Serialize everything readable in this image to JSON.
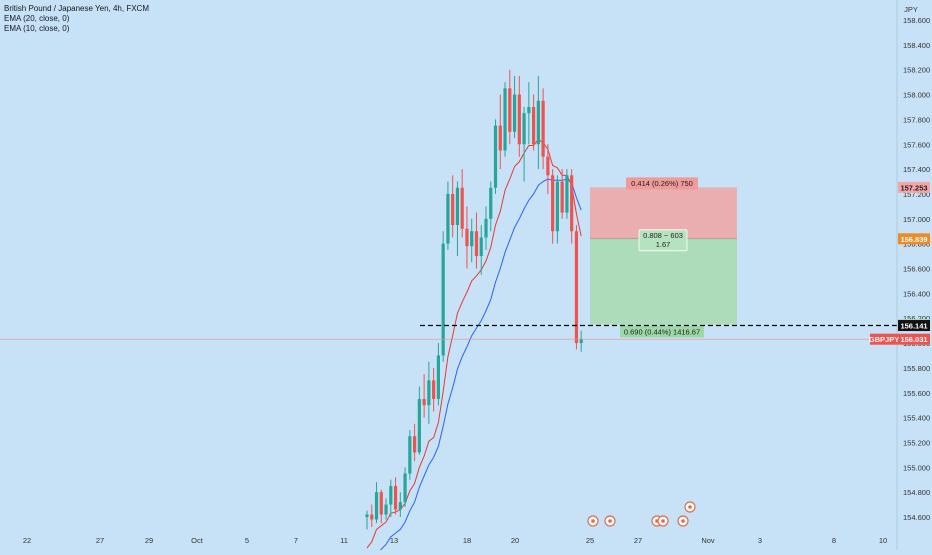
{
  "legend": {
    "title": "British Pound / Japanese Yen, 4h, FXCM",
    "ema20": "EMA (20, close, 0)",
    "ema10": "EMA (10, close, 0)"
  },
  "axis": {
    "currency": "JPY",
    "price_ticks": [
      "154.600",
      "154.800",
      "155.000",
      "155.200",
      "155.400",
      "155.600",
      "155.800",
      "156.000",
      "156.200",
      "156.400",
      "156.600",
      "156.800",
      "157.000",
      "157.200",
      "157.400",
      "157.600",
      "157.800",
      "158.000",
      "158.200",
      "158.400",
      "158.600"
    ],
    "date_ticks": [
      "22",
      "27",
      "29",
      "Oct",
      "5",
      "7",
      "11",
      "13",
      "18",
      "20",
      "25",
      "27",
      "Nov",
      "3",
      "8",
      "10"
    ]
  },
  "price_labels": {
    "stop": "157.253",
    "entry": "156.839",
    "target": "156.149",
    "dashed_level": "156.141",
    "symbol": "GBPJPY",
    "current": "156.031"
  },
  "position_tool": {
    "risk_text": "0.414 (0.26%) 750",
    "ratio_text": "0.808 ~ 603",
    "ratio_value": "1.67",
    "reward_text": "0.690 (0.44%) 1416.67"
  },
  "colors": {
    "bull": "#26a69a",
    "bear": "#ef5350",
    "ema20": "#2962ff",
    "ema10": "#e53935",
    "risk_zone": "#f0a3a3",
    "reward_zone": "#a8dcb2",
    "background": "#c7e2f6"
  },
  "chart_data": {
    "type": "candlestick",
    "symbol": "GBPJPY",
    "timeframe": "4h",
    "y_range": [
      154.5,
      158.7
    ],
    "y_scale": "linear",
    "candles": [
      {
        "o": 154.6,
        "h": 154.65,
        "l": 154.5,
        "c": 154.62
      },
      {
        "o": 154.62,
        "h": 154.7,
        "l": 154.52,
        "c": 154.58
      },
      {
        "o": 154.58,
        "h": 154.88,
        "l": 154.55,
        "c": 154.8
      },
      {
        "o": 154.8,
        "h": 154.82,
        "l": 154.55,
        "c": 154.62
      },
      {
        "o": 154.62,
        "h": 154.75,
        "l": 154.58,
        "c": 154.7
      },
      {
        "o": 154.7,
        "h": 154.9,
        "l": 154.6,
        "c": 154.85
      },
      {
        "o": 154.85,
        "h": 154.92,
        "l": 154.62,
        "c": 154.66
      },
      {
        "o": 154.66,
        "h": 154.8,
        "l": 154.6,
        "c": 154.72
      },
      {
        "o": 154.72,
        "h": 155.0,
        "l": 154.68,
        "c": 154.95
      },
      {
        "o": 154.95,
        "h": 155.3,
        "l": 154.9,
        "c": 155.25
      },
      {
        "o": 155.25,
        "h": 155.35,
        "l": 155.05,
        "c": 155.12
      },
      {
        "o": 155.12,
        "h": 155.65,
        "l": 155.1,
        "c": 155.55
      },
      {
        "o": 155.55,
        "h": 155.75,
        "l": 155.4,
        "c": 155.5
      },
      {
        "o": 155.5,
        "h": 155.85,
        "l": 155.35,
        "c": 155.7
      },
      {
        "o": 155.7,
        "h": 155.8,
        "l": 155.45,
        "c": 155.55
      },
      {
        "o": 155.55,
        "h": 156.0,
        "l": 155.5,
        "c": 155.9
      },
      {
        "o": 155.9,
        "h": 156.9,
        "l": 155.85,
        "c": 156.8
      },
      {
        "o": 156.8,
        "h": 157.3,
        "l": 156.75,
        "c": 157.2
      },
      {
        "o": 157.2,
        "h": 157.35,
        "l": 156.85,
        "c": 156.95
      },
      {
        "o": 156.95,
        "h": 157.3,
        "l": 156.7,
        "c": 157.25
      },
      {
        "o": 157.25,
        "h": 157.4,
        "l": 156.85,
        "c": 156.92
      },
      {
        "o": 156.92,
        "h": 157.1,
        "l": 156.6,
        "c": 156.78
      },
      {
        "o": 156.78,
        "h": 157.0,
        "l": 156.65,
        "c": 156.9
      },
      {
        "o": 156.9,
        "h": 157.05,
        "l": 156.6,
        "c": 156.7
      },
      {
        "o": 156.7,
        "h": 156.95,
        "l": 156.55,
        "c": 156.85
      },
      {
        "o": 156.85,
        "h": 157.1,
        "l": 156.75,
        "c": 157.0
      },
      {
        "o": 157.0,
        "h": 157.3,
        "l": 156.9,
        "c": 157.25
      },
      {
        "o": 157.25,
        "h": 157.8,
        "l": 157.2,
        "c": 157.75
      },
      {
        "o": 157.75,
        "h": 158.0,
        "l": 157.4,
        "c": 157.55
      },
      {
        "o": 157.55,
        "h": 158.1,
        "l": 157.5,
        "c": 158.05
      },
      {
        "o": 158.05,
        "h": 158.2,
        "l": 157.6,
        "c": 157.7
      },
      {
        "o": 157.7,
        "h": 158.15,
        "l": 157.65,
        "c": 158.0
      },
      {
        "o": 158.0,
        "h": 158.15,
        "l": 157.5,
        "c": 157.6
      },
      {
        "o": 157.6,
        "h": 157.9,
        "l": 157.3,
        "c": 157.85
      },
      {
        "o": 157.85,
        "h": 158.1,
        "l": 157.6,
        "c": 157.9
      },
      {
        "o": 157.9,
        "h": 158.0,
        "l": 157.55,
        "c": 157.6
      },
      {
        "o": 157.6,
        "h": 158.15,
        "l": 157.4,
        "c": 157.95
      },
      {
        "o": 157.95,
        "h": 158.05,
        "l": 157.4,
        "c": 157.5
      },
      {
        "o": 157.5,
        "h": 157.6,
        "l": 157.2,
        "c": 157.35
      },
      {
        "o": 157.35,
        "h": 157.4,
        "l": 156.8,
        "c": 156.9
      },
      {
        "o": 156.9,
        "h": 157.35,
        "l": 156.8,
        "c": 157.3
      },
      {
        "o": 157.3,
        "h": 157.4,
        "l": 157.0,
        "c": 157.05
      },
      {
        "o": 157.05,
        "h": 157.4,
        "l": 157.0,
        "c": 157.35
      },
      {
        "o": 157.35,
        "h": 157.4,
        "l": 156.8,
        "c": 156.9
      },
      {
        "o": 156.9,
        "h": 156.95,
        "l": 155.95,
        "c": 156.0
      },
      {
        "o": 156.0,
        "h": 156.1,
        "l": 155.93,
        "c": 156.03
      }
    ],
    "ema20": [
      154.2,
      154.24,
      154.3,
      154.34,
      154.38,
      154.44,
      154.47,
      154.5,
      154.56,
      154.65,
      154.72,
      154.84,
      154.93,
      155.02,
      155.08,
      155.17,
      155.33,
      155.51,
      155.64,
      155.79,
      155.89,
      155.97,
      156.06,
      156.12,
      156.18,
      156.26,
      156.35,
      156.49,
      156.6,
      156.73,
      156.83,
      156.93,
      157.0,
      157.08,
      157.15,
      157.2,
      157.27,
      157.3,
      157.32,
      157.31,
      157.31,
      157.31,
      157.32,
      157.29,
      157.17,
      157.07
    ],
    "ema10": [
      154.35,
      154.4,
      154.5,
      154.53,
      154.56,
      154.63,
      154.64,
      154.66,
      154.71,
      154.81,
      154.87,
      155.0,
      155.09,
      155.21,
      155.24,
      155.36,
      155.61,
      155.89,
      156.06,
      156.24,
      156.33,
      156.41,
      156.5,
      156.54,
      156.59,
      156.66,
      156.77,
      156.95,
      157.06,
      157.23,
      157.32,
      157.42,
      157.46,
      157.53,
      157.59,
      157.59,
      157.64,
      157.61,
      157.56,
      157.43,
      157.41,
      157.35,
      157.35,
      157.27,
      157.04,
      156.86
    ],
    "position": {
      "type": "short",
      "entry": 156.839,
      "stop": 157.253,
      "target": 156.149,
      "risk": "0.414 (0.26%) 750",
      "reward": "0.690 (0.44%) 1416.67",
      "ratio": "1.67"
    },
    "horizontal_level": 156.141,
    "current_price": 156.031,
    "event_markers": 6
  }
}
